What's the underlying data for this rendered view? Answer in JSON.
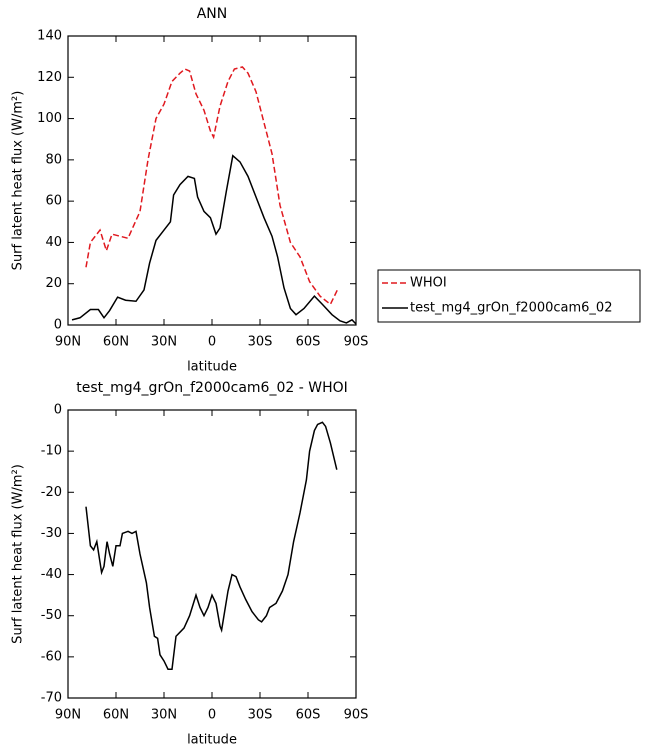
{
  "chart_data": [
    {
      "type": "line",
      "title": "ANN",
      "xlabel": "latitude",
      "ylabel": "Surf latent heat flux (W/m²)",
      "xlim": [
        90,
        -90
      ],
      "xticks": [
        {
          "value": 90,
          "label": "90N"
        },
        {
          "value": 60,
          "label": "60N"
        },
        {
          "value": 30,
          "label": "30N"
        },
        0,
        {
          "value": -30,
          "label": "30S"
        },
        {
          "value": -60,
          "label": "60S"
        },
        {
          "value": -90,
          "label": "90S"
        }
      ],
      "ylim": [
        0,
        140
      ],
      "yticks": [
        0,
        20,
        40,
        60,
        80,
        100,
        120,
        140
      ],
      "legend": "right",
      "series": [
        {
          "name": "WHOI",
          "color": "#e0191f",
          "dashed": true,
          "x": [
            78.75,
            76,
            72,
            70,
            66,
            62.5,
            57.5,
            52.5,
            45,
            40,
            35,
            30,
            25,
            20,
            17,
            14,
            10,
            5,
            1,
            -1,
            -5,
            -10,
            -14,
            -19,
            -22.5,
            -27.5,
            -32.5,
            -37.5,
            -42.5,
            -49,
            -55,
            -61,
            -67.5,
            -74,
            -79
          ],
          "values": [
            28,
            40,
            44,
            46,
            36,
            44,
            43,
            42,
            55,
            80,
            100,
            107,
            118,
            122,
            124,
            123,
            112,
            104,
            94,
            91,
            106,
            118,
            124,
            125,
            122,
            113,
            98,
            83,
            58,
            40,
            33,
            21,
            14,
            10,
            18
          ]
        },
        {
          "name": "test_mg4_grOn_f2000cam6_02",
          "color": "#000000",
          "dashed": false,
          "x": [
            87.5,
            82.5,
            76,
            71,
            67.5,
            64,
            59,
            54,
            47.5,
            42.5,
            39,
            35,
            30,
            26,
            24,
            20,
            15,
            11,
            9,
            5,
            1,
            -2.5,
            -5,
            -9,
            -13,
            -17.5,
            -22.5,
            -27.5,
            -32.5,
            -37.5,
            -41,
            -45,
            -49,
            -52.5,
            -57.5,
            -64,
            -69,
            -75,
            -80,
            -84,
            -87.5,
            -90
          ],
          "values": [
            2.5,
            3.5,
            7.5,
            7.5,
            3.5,
            7,
            13.5,
            12,
            11.5,
            17,
            30,
            41,
            46,
            50,
            63,
            68,
            72,
            71,
            62,
            55,
            52,
            44,
            47,
            65,
            82,
            79,
            72,
            62,
            52,
            43,
            33,
            18,
            8,
            5,
            8,
            14,
            10,
            5,
            2,
            1,
            2.5,
            0.5
          ]
        }
      ]
    },
    {
      "type": "line",
      "title": "test_mg4_grOn_f2000cam6_02 - WHOI",
      "xlabel": "latitude",
      "ylabel": "Surf latent heat flux (W/m²)",
      "xlim": [
        90,
        -90
      ],
      "xticks": [
        {
          "value": 90,
          "label": "90N"
        },
        {
          "value": 60,
          "label": "60N"
        },
        {
          "value": 30,
          "label": "30N"
        },
        0,
        {
          "value": -30,
          "label": "30S"
        },
        {
          "value": -60,
          "label": "60S"
        },
        {
          "value": -90,
          "label": "90S"
        }
      ],
      "ylim": [
        -70,
        0
      ],
      "yticks": [
        0,
        -10,
        -20,
        -30,
        -40,
        -50,
        -60,
        -70
      ],
      "series": [
        {
          "color": "#000000",
          "dashed": false,
          "x": [
            78.75,
            76,
            74,
            72,
            70,
            69,
            67.5,
            65.6,
            64,
            62,
            60,
            57.5,
            56,
            52.5,
            50,
            47.5,
            45,
            41,
            39,
            36,
            34,
            32.5,
            30,
            27.5,
            25,
            22.5,
            20,
            17.5,
            14,
            10,
            7.5,
            5,
            2.5,
            0,
            -2.5,
            -5,
            -6,
            -10,
            -12.5,
            -15,
            -17.5,
            -21,
            -25,
            -29,
            -31,
            -34,
            -36,
            -40,
            -44,
            -47.5,
            -51,
            -55,
            -59,
            -61,
            -64,
            -66,
            -69,
            -71,
            -74,
            -78
          ],
          "values": [
            -23.5,
            -33,
            -34,
            -32,
            -37,
            -39.5,
            -38,
            -32,
            -35,
            -38,
            -33,
            -33,
            -30,
            -29.5,
            -30,
            -29.5,
            -35,
            -42,
            -48,
            -55,
            -55.5,
            -59.5,
            -61,
            -63,
            -63,
            -55,
            -54,
            -53,
            -50,
            -45,
            -48,
            -50,
            -48,
            -45,
            -47,
            -52.5,
            -53.5,
            -44,
            -40,
            -40.5,
            -43,
            -46,
            -49,
            -51,
            -51.5,
            -50,
            -48,
            -47,
            -44,
            -40,
            -32,
            -25,
            -17,
            -10,
            -5,
            -3.5,
            -3,
            -4,
            -8,
            -14.5
          ]
        }
      ]
    }
  ]
}
